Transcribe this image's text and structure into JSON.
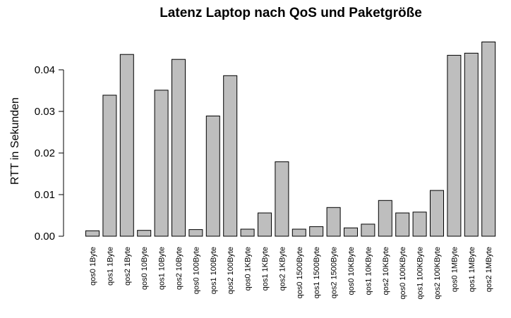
{
  "chart_data": {
    "type": "bar",
    "title": "Latenz Laptop nach QoS und Paketgröße",
    "xlabel": "",
    "ylabel": "RTT in Sekunden",
    "ylim": [
      0,
      0.047
    ],
    "yticks": [
      "0.00",
      "0.01",
      "0.02",
      "0.03",
      "0.04"
    ],
    "grid": false,
    "bar_color": "#bebebe",
    "categories": [
      "qos0 1Byte",
      "qos1 1Byte",
      "qos2 1Byte",
      "qos0 10Byte",
      "qos1 10Byte",
      "qos2 10Byte",
      "qos0 100Byte",
      "qos1 100Byte",
      "qos2 100Byte",
      "qos0 1KByte",
      "qos1 1KByte",
      "qos2 1KByte",
      "qos0 1500Byte",
      "qos1 1500Byte",
      "qos2 1500Byte",
      "qos0 10KByte",
      "qos1 10KByte",
      "qos2 10KByte",
      "qos0 100KByte",
      "qos1 100KByte",
      "qos2 100KByte",
      "qos0 1MByte",
      "qos1 1MByte",
      "qos2 1MByte"
    ],
    "values": [
      0.0013,
      0.0339,
      0.0437,
      0.0014,
      0.0351,
      0.0425,
      0.0016,
      0.0289,
      0.0386,
      0.0017,
      0.0056,
      0.0179,
      0.0017,
      0.0023,
      0.0069,
      0.002,
      0.0029,
      0.0086,
      0.0056,
      0.0058,
      0.011,
      0.0435,
      0.044,
      0.0467
    ]
  }
}
